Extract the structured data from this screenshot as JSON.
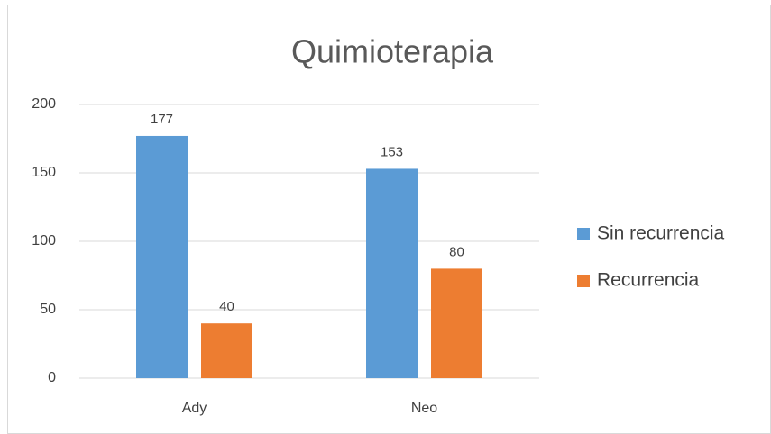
{
  "chart_data": {
    "type": "bar",
    "title": "Quimioterapia",
    "categories": [
      "Ady",
      "Neo"
    ],
    "series": [
      {
        "name": "Sin recurrencia",
        "color": "#5b9bd5",
        "values": [
          177,
          153
        ]
      },
      {
        "name": "Recurrencia",
        "color": "#ed7d31",
        "values": [
          40,
          80
        ]
      }
    ],
    "ylim": [
      0,
      200
    ],
    "yticks": [
      0,
      50,
      100,
      150,
      200
    ],
    "grid": true,
    "legend": "right"
  }
}
